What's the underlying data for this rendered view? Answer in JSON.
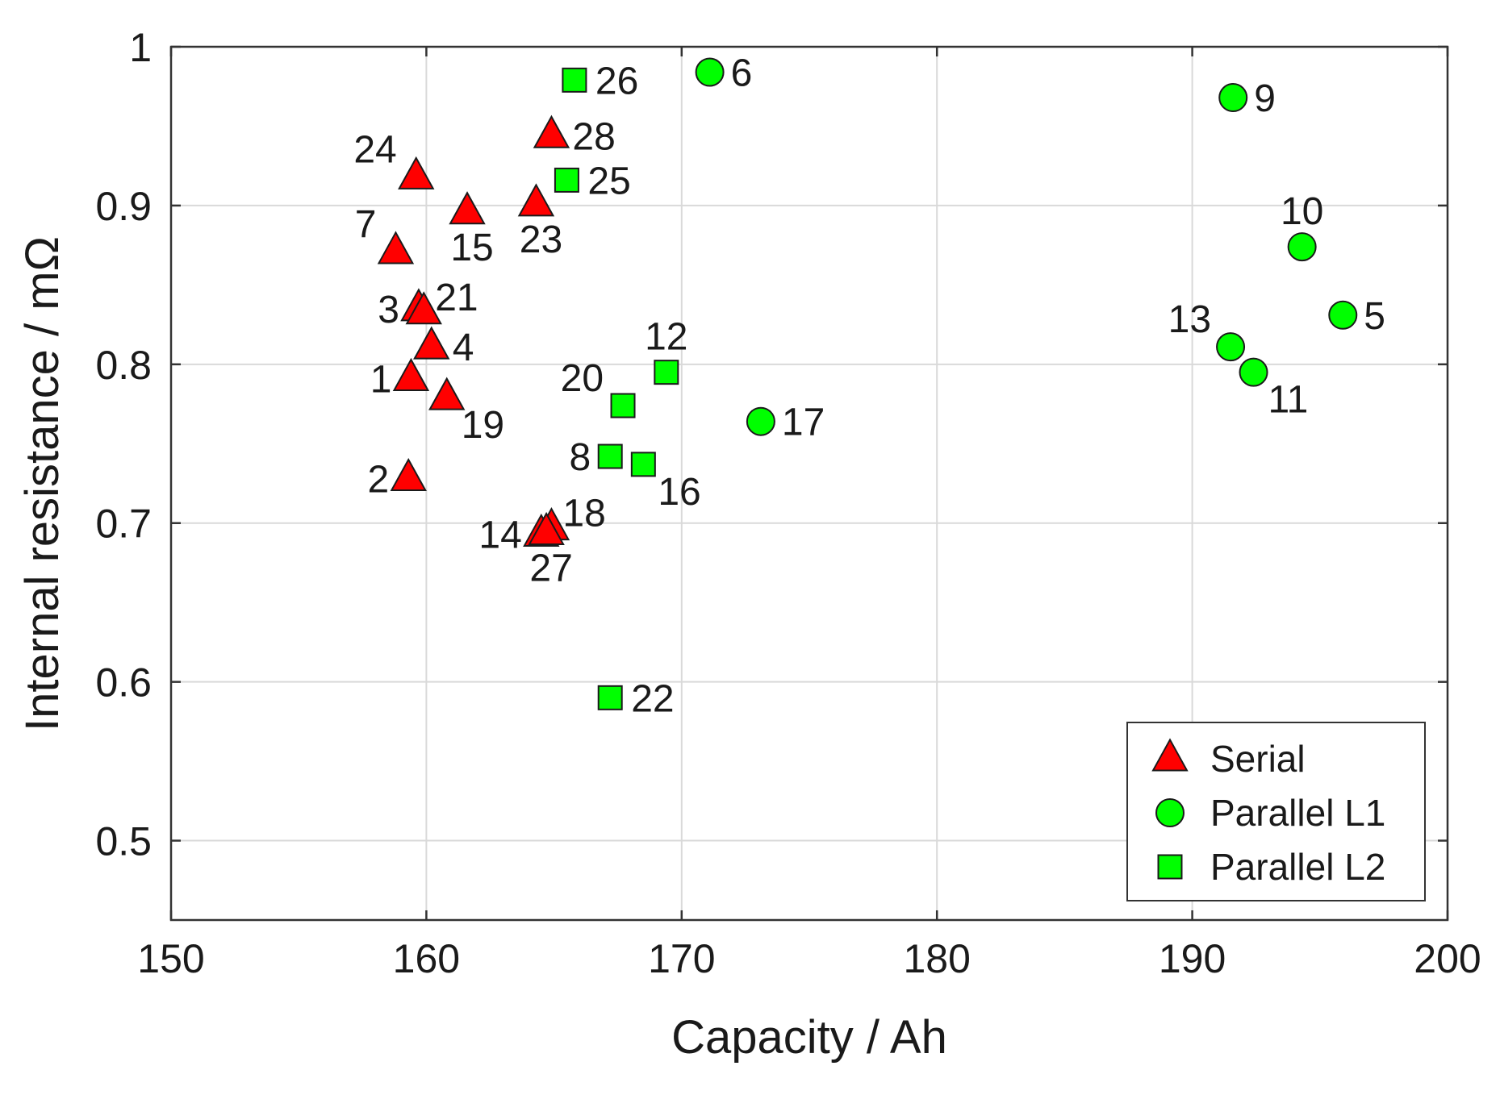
{
  "chart_data": {
    "type": "scatter",
    "xlabel": "Capacity / Ah",
    "ylabel": "Internal resistance / mΩ",
    "xlim": [
      150,
      200
    ],
    "ylim": [
      0.45,
      1.0
    ],
    "xticks": [
      150,
      160,
      170,
      180,
      190,
      200
    ],
    "yticks": [
      0.5,
      0.6,
      0.7,
      0.8,
      0.9,
      1.0
    ],
    "xtick_labels": [
      "150",
      "160",
      "170",
      "180",
      "190",
      "200"
    ],
    "ytick_labels": [
      "0.5",
      "0.6",
      "0.7",
      "0.8",
      "0.9",
      "1"
    ],
    "grid": true,
    "legend": {
      "placement": "bottom-right",
      "entries": [
        "Serial",
        "Parallel L1",
        "Parallel L2"
      ]
    },
    "series": [
      {
        "name": "Serial",
        "marker": "triangle",
        "color": "#ff0000",
        "points": [
          {
            "id": "1",
            "x": 159.4,
            "y": 0.791,
            "label_anchor": "left"
          },
          {
            "id": "2",
            "x": 159.3,
            "y": 0.728,
            "label_anchor": "left"
          },
          {
            "id": "3",
            "x": 159.7,
            "y": 0.835,
            "label_anchor": "left"
          },
          {
            "id": "4",
            "x": 160.2,
            "y": 0.811,
            "label_anchor": "right"
          },
          {
            "id": "7",
            "x": 158.8,
            "y": 0.871,
            "label_anchor": "upper-left"
          },
          {
            "id": "14",
            "x": 164.5,
            "y": 0.693,
            "label_anchor": "left"
          },
          {
            "id": "15",
            "x": 161.6,
            "y": 0.896,
            "label_anchor": "below"
          },
          {
            "id": "18",
            "x": 164.9,
            "y": 0.697,
            "label_anchor": "upper-right"
          },
          {
            "id": "19",
            "x": 160.8,
            "y": 0.779,
            "label_anchor": "below-right"
          },
          {
            "id": "21",
            "x": 159.9,
            "y": 0.833,
            "label_anchor": "upper-right"
          },
          {
            "id": "23",
            "x": 164.3,
            "y": 0.901,
            "label_anchor": "below"
          },
          {
            "id": "24",
            "x": 159.6,
            "y": 0.918,
            "label_anchor": "upper-left"
          },
          {
            "id": "27",
            "x": 164.7,
            "y": 0.694,
            "label_anchor": "below"
          },
          {
            "id": "28",
            "x": 164.9,
            "y": 0.944,
            "label_anchor": "right"
          }
        ]
      },
      {
        "name": "Parallel L1",
        "marker": "circle",
        "color": "#00ff00",
        "points": [
          {
            "id": "5",
            "x": 195.9,
            "y": 0.831,
            "label_anchor": "right"
          },
          {
            "id": "6",
            "x": 171.1,
            "y": 0.984,
            "label_anchor": "right"
          },
          {
            "id": "9",
            "x": 191.6,
            "y": 0.968,
            "label_anchor": "right"
          },
          {
            "id": "10",
            "x": 194.3,
            "y": 0.874,
            "label_anchor": "above"
          },
          {
            "id": "11",
            "x": 192.4,
            "y": 0.795,
            "label_anchor": "below-right"
          },
          {
            "id": "13",
            "x": 191.5,
            "y": 0.811,
            "label_anchor": "upper-left"
          },
          {
            "id": "17",
            "x": 173.1,
            "y": 0.764,
            "label_anchor": "right"
          }
        ]
      },
      {
        "name": "Parallel L2",
        "marker": "square",
        "color": "#00ff00",
        "points": [
          {
            "id": "8",
            "x": 167.2,
            "y": 0.742,
            "label_anchor": "left"
          },
          {
            "id": "12",
            "x": 169.4,
            "y": 0.795,
            "label_anchor": "above"
          },
          {
            "id": "16",
            "x": 168.5,
            "y": 0.737,
            "label_anchor": "below-right"
          },
          {
            "id": "20",
            "x": 167.7,
            "y": 0.774,
            "label_anchor": "upper-left"
          },
          {
            "id": "22",
            "x": 167.2,
            "y": 0.59,
            "label_anchor": "right"
          },
          {
            "id": "25",
            "x": 165.5,
            "y": 0.916,
            "label_anchor": "right"
          },
          {
            "id": "26",
            "x": 165.8,
            "y": 0.979,
            "label_anchor": "right"
          }
        ]
      }
    ]
  }
}
